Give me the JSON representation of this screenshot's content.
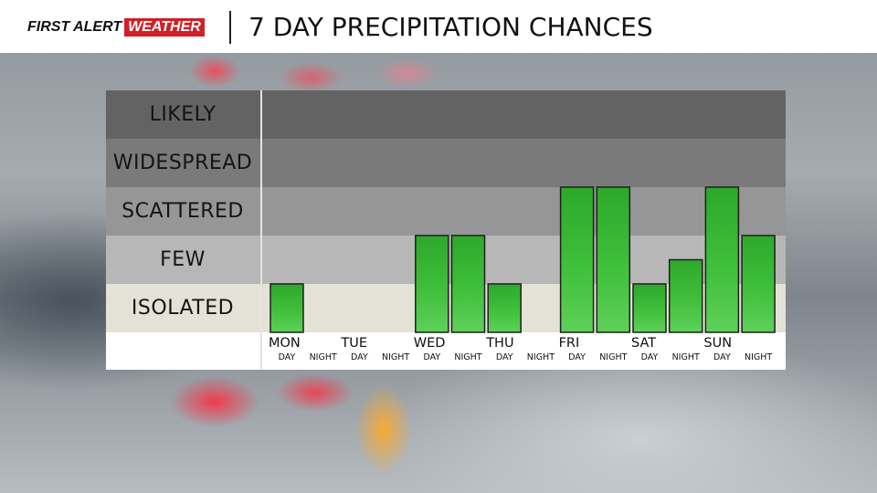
{
  "header": {
    "logo_first": "FIRST ALERT",
    "logo_weather": "WEATHER",
    "title": "7 DAY PRECIPITATION CHANCES"
  },
  "colors": {
    "bar_green": "#3fbf3a",
    "logo_red": "#d21f26",
    "band_likely": "#636363",
    "band_widespread": "#7a7a7a",
    "band_scattered": "#969696",
    "band_few": "#b7b7b7",
    "band_isolated": "#e4e1d7"
  },
  "chart_data": {
    "type": "bar",
    "y_categories": [
      "ISOLATED",
      "FEW",
      "SCATTERED",
      "WIDESPREAD",
      "LIKELY"
    ],
    "days": [
      "MON",
      "TUE",
      "WED",
      "THU",
      "FRI",
      "SAT",
      "SUN"
    ],
    "periods": [
      "DAY",
      "NIGHT"
    ],
    "series": [
      {
        "day": "MON",
        "period": "DAY",
        "level": 1
      },
      {
        "day": "MON",
        "period": "NIGHT",
        "level": 0
      },
      {
        "day": "TUE",
        "period": "DAY",
        "level": 0
      },
      {
        "day": "TUE",
        "period": "NIGHT",
        "level": 0
      },
      {
        "day": "WED",
        "period": "DAY",
        "level": 2
      },
      {
        "day": "WED",
        "period": "NIGHT",
        "level": 2
      },
      {
        "day": "THU",
        "period": "DAY",
        "level": 1
      },
      {
        "day": "THU",
        "period": "NIGHT",
        "level": 0
      },
      {
        "day": "FRI",
        "period": "DAY",
        "level": 3
      },
      {
        "day": "FRI",
        "period": "NIGHT",
        "level": 3
      },
      {
        "day": "SAT",
        "period": "DAY",
        "level": 1
      },
      {
        "day": "SAT",
        "period": "NIGHT",
        "level": 1.5
      },
      {
        "day": "SUN",
        "period": "DAY",
        "level": 3
      },
      {
        "day": "SUN",
        "period": "NIGHT",
        "level": 2
      }
    ]
  }
}
